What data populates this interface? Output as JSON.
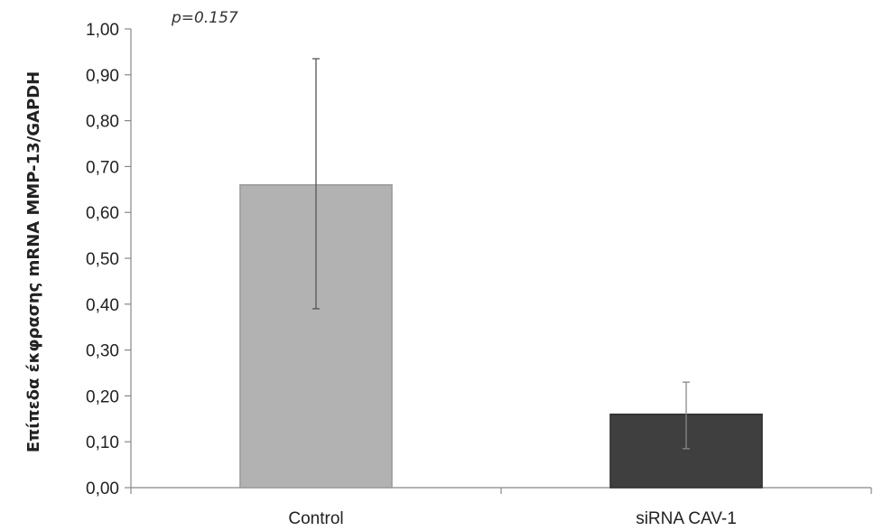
{
  "chart_data": {
    "type": "bar",
    "categories": [
      "Control",
      "siRNA CAV-1"
    ],
    "values": [
      0.66,
      0.16
    ],
    "error_bars": [
      {
        "low": 0.39,
        "high": 0.935
      },
      {
        "low": 0.085,
        "high": 0.23
      }
    ],
    "bar_colors": [
      "#b2b2b2",
      "#3f3f3f"
    ],
    "ylabel": "Επίπεδα έκφρασης mRNA MMP-13/GAPDH",
    "xlabel": "",
    "ylim": [
      0,
      1
    ],
    "yticks": [
      "0,00",
      "0,10",
      "0,20",
      "0,30",
      "0,40",
      "0,50",
      "0,60",
      "0,70",
      "0,80",
      "0,90",
      "1,00"
    ],
    "annotation": "p=0.157",
    "grid": false,
    "legend": "none"
  }
}
